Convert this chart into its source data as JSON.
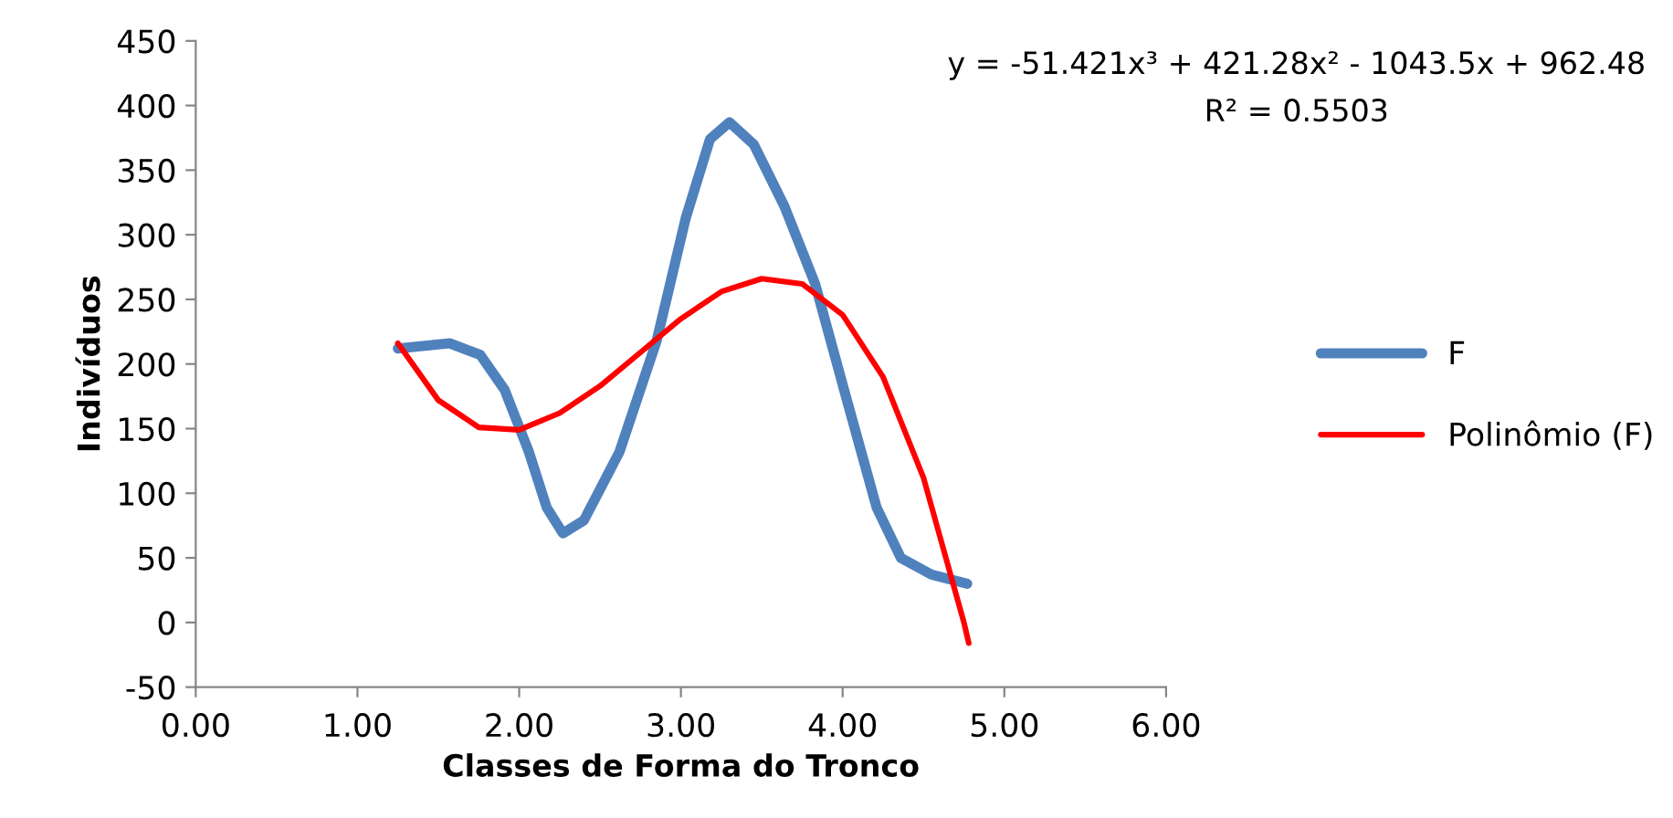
{
  "chart_data": {
    "type": "line",
    "xlabel": "Classes de Forma do Tronco",
    "ylabel": "Indivíduos",
    "xlim": [
      0,
      6
    ],
    "xticks": [
      {
        "value": 0,
        "label": "0.00"
      },
      {
        "value": 1,
        "label": "1.00"
      },
      {
        "value": 2,
        "label": "2.00"
      },
      {
        "value": 3,
        "label": "3.00"
      },
      {
        "value": 4,
        "label": "4.00"
      },
      {
        "value": 5,
        "label": "5.00"
      },
      {
        "value": 6,
        "label": "6.00"
      }
    ],
    "ylim": [
      -50,
      450
    ],
    "yticks": [
      -50,
      0,
      50,
      100,
      150,
      200,
      250,
      300,
      350,
      400,
      450
    ],
    "series": [
      {
        "name": "F",
        "color": "#4f81bd",
        "x": [
          1.25,
          1.57,
          1.76,
          1.91,
          2.06,
          2.17,
          2.27,
          2.4,
          2.62,
          2.85,
          3.03,
          3.18,
          3.3,
          3.45,
          3.64,
          3.83,
          4.02,
          4.21,
          4.36,
          4.55,
          4.77
        ],
        "values": [
          212,
          216,
          207,
          180,
          132,
          89,
          69,
          79,
          132,
          218,
          313,
          374,
          387,
          370,
          322,
          262,
          175,
          89,
          50,
          37,
          30
        ]
      },
      {
        "name": "Polinômio (F)",
        "color": "#ff0000",
        "x": [
          1.25,
          1.5,
          1.75,
          2.0,
          2.25,
          2.5,
          2.75,
          3.0,
          3.25,
          3.5,
          3.75,
          4.0,
          4.25,
          4.5,
          4.75,
          4.78
        ],
        "values": [
          216,
          172,
          151,
          149,
          162,
          183,
          209,
          235,
          256,
          266,
          262,
          238,
          190,
          112,
          0,
          -16
        ]
      }
    ],
    "annotations": [
      "y = -51.421x³ + 421.28x² - 1043.5x + 962.48",
      "R² = 0.5503"
    ],
    "legend": "right",
    "grid": false,
    "marker": "none",
    "line_style": "solid"
  }
}
